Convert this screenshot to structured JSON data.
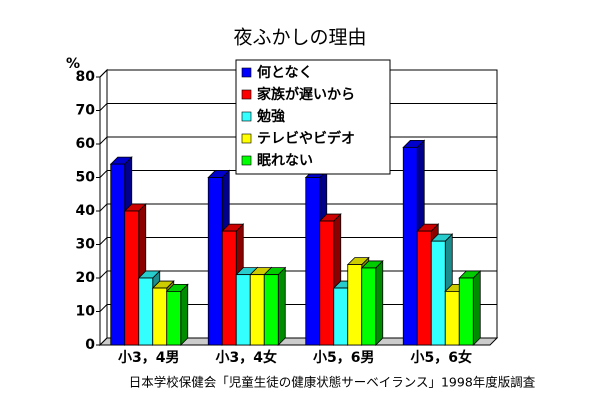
{
  "chart_data": {
    "type": "bar3d",
    "title": "夜ふかしの理由",
    "y_unit": "%",
    "source": "日本学校保健会「児童生徒の健康状態サーベイランス」1998年度版調査",
    "categories": [
      "小3，4男",
      "小3，4女",
      "小5，6男",
      "小5，6女"
    ],
    "series": [
      {
        "name": "何となく",
        "color": "#0000ff",
        "values": [
          54,
          50,
          50,
          59
        ]
      },
      {
        "name": "家族が遅いから",
        "color": "#ff0000",
        "values": [
          40,
          34,
          37,
          34
        ]
      },
      {
        "name": "勉強",
        "color": "#33ffff",
        "values": [
          20,
          21,
          17,
          31
        ]
      },
      {
        "name": "テレビやビデオ",
        "color": "#ffff00",
        "values": [
          17,
          21,
          24,
          16
        ]
      },
      {
        "name": "眠れない",
        "color": "#00ff00",
        "values": [
          16,
          21,
          23,
          20
        ]
      }
    ],
    "ylim": [
      0,
      80
    ],
    "yticks": [
      0,
      10,
      20,
      30,
      40,
      50,
      60,
      70,
      80
    ],
    "grid": true
  }
}
